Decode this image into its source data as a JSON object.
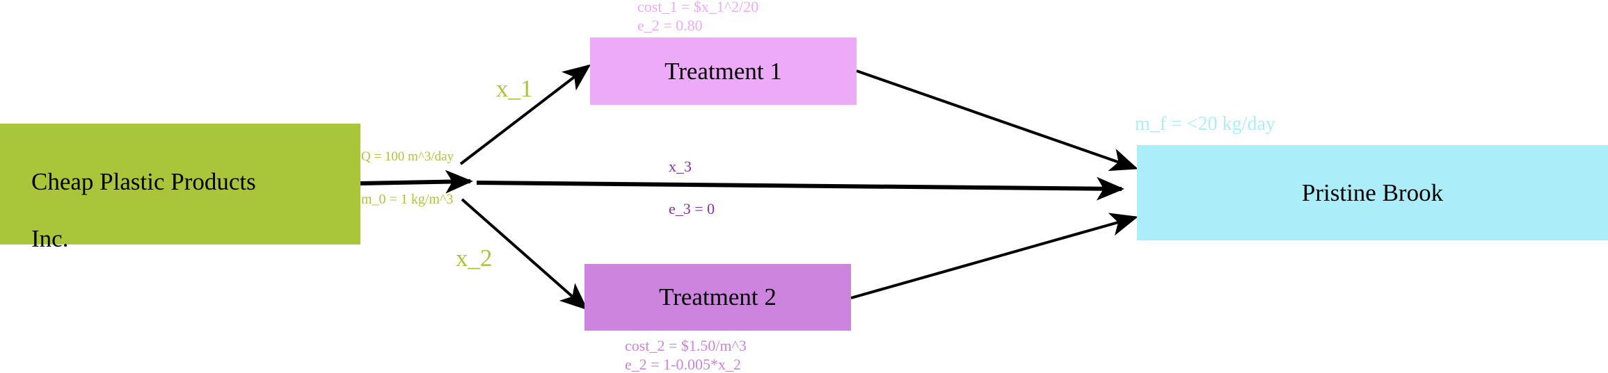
{
  "nodes": {
    "source": {
      "line1": "Cheap Plastic Products",
      "line2": "Inc."
    },
    "treatment1": "Treatment 1",
    "treatment2": "Treatment 2",
    "brook": "Pristine Brook"
  },
  "labels": {
    "flow_q": "Q = 100 m^3/day",
    "mass_0": "m_0 = 1 kg/m^3",
    "x1": "x_1",
    "x2": "x_2",
    "x3": "x_3",
    "e3": "e_3 = 0",
    "cost1": "cost_1 = $x_1^2/20",
    "e2_top": "e_2 = 0.80",
    "cost2": "cost_2 = $1.50/m^3",
    "e2_bottom": "e_2 = 1-0.005*x_2",
    "mf": "m_f = <20 kg/day"
  },
  "colors": {
    "source": "#a9c63a",
    "treatment1": "#edaaf8",
    "treatment2": "#cc84df",
    "brook": "#abeefa",
    "x3_label": "#8a2ea6",
    "arrow": "#000000"
  }
}
